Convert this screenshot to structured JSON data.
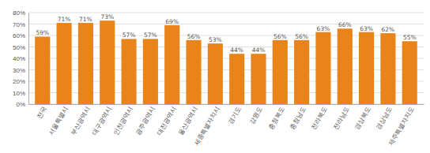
{
  "chart_data": {
    "type": "bar",
    "categories": [
      "전국",
      "서울특별시",
      "부산광역시",
      "대구광역시",
      "인천광역시",
      "광주광역시",
      "대전광역시",
      "울산광역시",
      "세종특별자치시",
      "경기도",
      "강원도",
      "충청북도",
      "충청남도",
      "전라북도",
      "전라남도",
      "경상북도",
      "경상남도",
      "제주특별자치도"
    ],
    "values": [
      59,
      71,
      71,
      73,
      57,
      57,
      69,
      56,
      53,
      44,
      44,
      56,
      56,
      63,
      66,
      63,
      62,
      55
    ],
    "value_labels": [
      "59%",
      "71%",
      "71%",
      "73%",
      "57%",
      "57%",
      "69%",
      "56%",
      "53%",
      "44%",
      "44%",
      "56%",
      "56%",
      "63%",
      "66%",
      "63%",
      "62%",
      "55%"
    ],
    "color": "#E8841A",
    "ylim": [
      0,
      80
    ],
    "yticks": [
      {
        "value": 0,
        "label": "0%"
      },
      {
        "value": 10,
        "label": "10%"
      },
      {
        "value": 20,
        "label": "20%"
      },
      {
        "value": 30,
        "label": "30%"
      },
      {
        "value": 40,
        "label": "40%"
      },
      {
        "value": 50,
        "label": "50%"
      },
      {
        "value": 60,
        "label": "60%"
      },
      {
        "value": 70,
        "label": "70%"
      },
      {
        "value": 80,
        "label": "80%"
      }
    ],
    "grid": true,
    "data_labels": true
  }
}
